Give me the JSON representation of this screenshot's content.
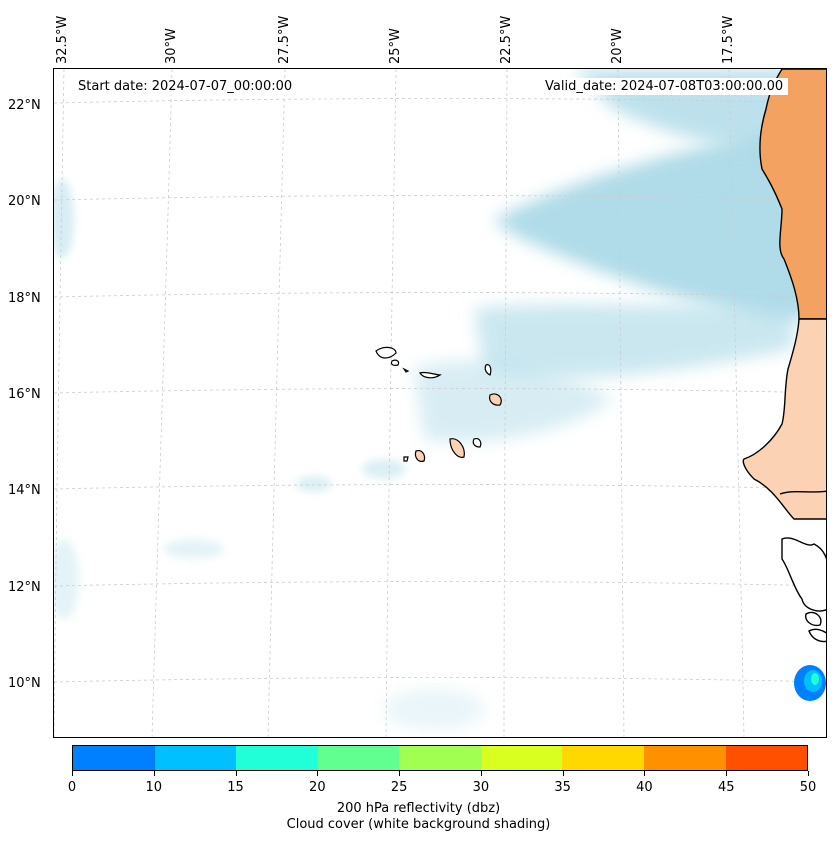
{
  "map": {
    "start_date": "Start date: 2024-07-07_00:00:00",
    "valid_date": "Valid_date: 2024-07-08T03:00:00.00",
    "longitude_labels": [
      "32.5°W",
      "30°W",
      "27.5°W",
      "25°W",
      "22.5°W",
      "20°W",
      "17.5°W"
    ],
    "latitude_labels": [
      "22°N",
      "20°N",
      "18°N",
      "16°N",
      "14°N",
      "12°N",
      "10°N"
    ],
    "colors": {
      "cloud": "#a8d8e6",
      "land_high": "#f4a261",
      "land_low": "#fbd2b4",
      "coast": "#000000",
      "grid": "#cccccc"
    }
  },
  "colorbar": {
    "ticks": [
      "0",
      "10",
      "15",
      "20",
      "25",
      "30",
      "35",
      "40",
      "45",
      "50"
    ],
    "colors": [
      "#0080ff",
      "#00c0ff",
      "#20ffd8",
      "#60ff90",
      "#a0ff50",
      "#d8ff20",
      "#ffd800",
      "#ff9000",
      "#ff5000"
    ],
    "label_line1": "200 hPa reflectivity (dbz)",
    "label_line2": "Cloud cover (white background shading)"
  }
}
